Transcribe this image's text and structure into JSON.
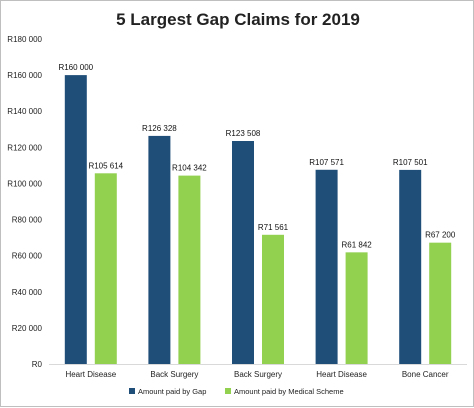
{
  "chart_data": {
    "type": "bar",
    "title": "5 Largest Gap Claims for 2019",
    "categories": [
      "Heart Disease",
      "Back Surgery",
      "Back Surgery",
      "Heart Disease",
      "Bone Cancer"
    ],
    "series": [
      {
        "name": "Amount paid by Gap",
        "color": "#1f4e79",
        "values": [
          160000,
          126328,
          123508,
          107571,
          107501
        ],
        "labels": [
          "R160 000",
          "R126 328",
          "R123 508",
          "R107 571",
          "R107 501"
        ]
      },
      {
        "name": "Amount paid by Medical Scheme",
        "color": "#92d050",
        "values": [
          105614,
          104342,
          71561,
          61842,
          67200
        ],
        "labels": [
          "R105 614",
          "R104 342",
          "R71 561",
          "R61 842",
          "R67 200"
        ]
      }
    ],
    "ylim": [
      0,
      180000
    ],
    "yticks": [
      {
        "value": 0,
        "label": "R0"
      },
      {
        "value": 20000,
        "label": "R20 000"
      },
      {
        "value": 40000,
        "label": "R40 000"
      },
      {
        "value": 60000,
        "label": "R60 000"
      },
      {
        "value": 80000,
        "label": "R80 000"
      },
      {
        "value": 100000,
        "label": "R100 000"
      },
      {
        "value": 120000,
        "label": "R120 000"
      },
      {
        "value": 140000,
        "label": "R140 000"
      },
      {
        "value": 160000,
        "label": "R160 000"
      },
      {
        "value": 180000,
        "label": "R180 000"
      }
    ],
    "grid": false,
    "legend_position": "bottom"
  }
}
